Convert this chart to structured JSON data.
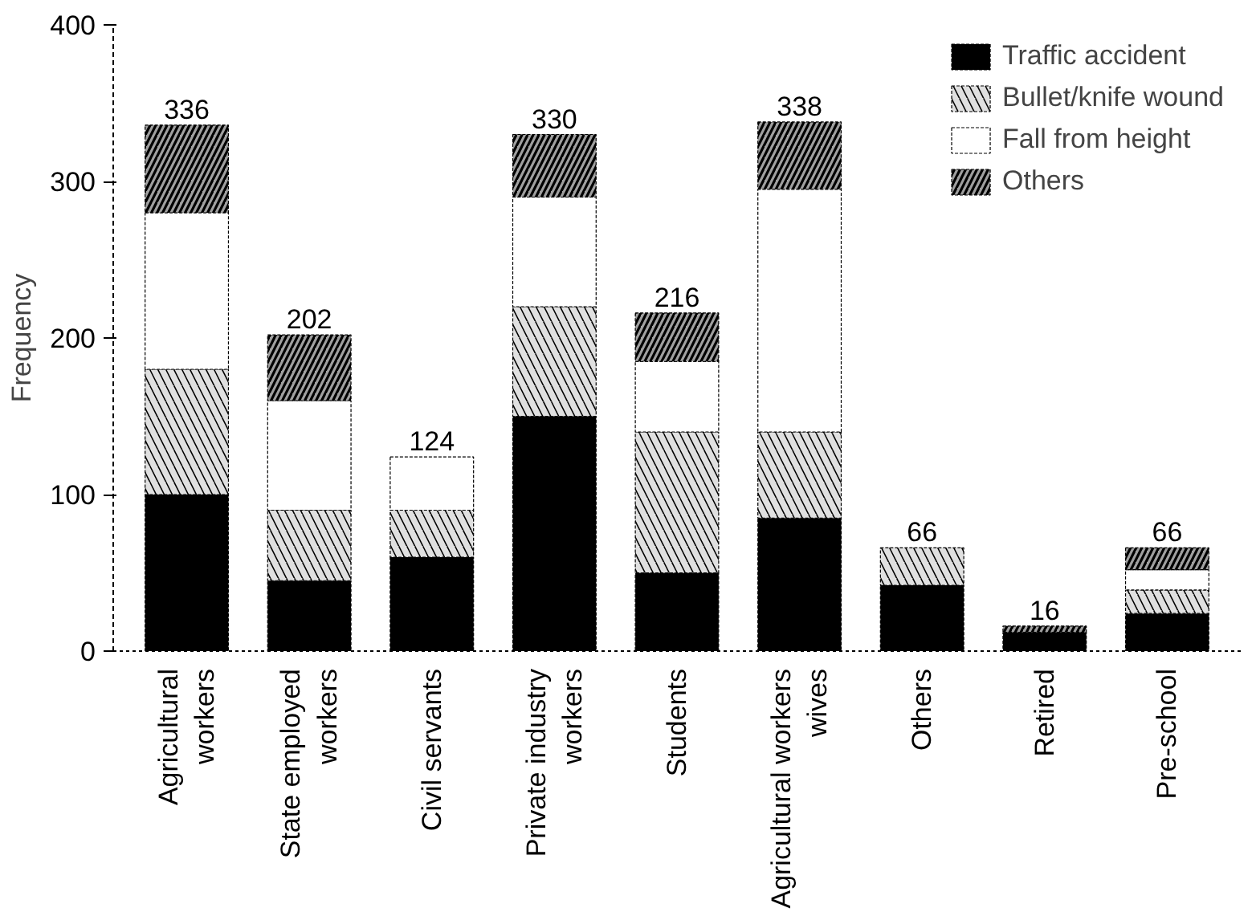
{
  "chart_data": {
    "type": "bar",
    "stacked": true,
    "ylabel": "Frequency",
    "categories": [
      "Agricultural\nworkers",
      "State employed\nworkers",
      "Civil servants",
      "Private industry\nworkers",
      "Students",
      "Agricultural workers\nwives",
      "Others",
      "Retired",
      "Pre-school"
    ],
    "series": [
      {
        "name": "Traffic accident",
        "color": "#000000",
        "values": [
          100,
          45,
          60,
          150,
          50,
          85,
          42,
          12,
          24
        ]
      },
      {
        "name": "Bullet/knife wound",
        "color": "#e0e0e0",
        "values": [
          80,
          45,
          30,
          70,
          90,
          55,
          24,
          0,
          15
        ]
      },
      {
        "name": "Fall from height",
        "color": "#ffffff",
        "values": [
          100,
          70,
          34,
          70,
          45,
          155,
          0,
          0,
          13
        ]
      },
      {
        "name": "Others",
        "color": "#a0a0a0",
        "values": [
          56,
          42,
          0,
          40,
          31,
          43,
          0,
          4,
          14
        ]
      }
    ],
    "totals": [
      "336",
      "202",
      "124",
      "330",
      "216",
      "338",
      "66",
      "16",
      "66"
    ],
    "ylim": [
      0,
      400
    ],
    "yticks": [
      0,
      100,
      200,
      300,
      400
    ],
    "grid": false,
    "legend": "top right"
  }
}
